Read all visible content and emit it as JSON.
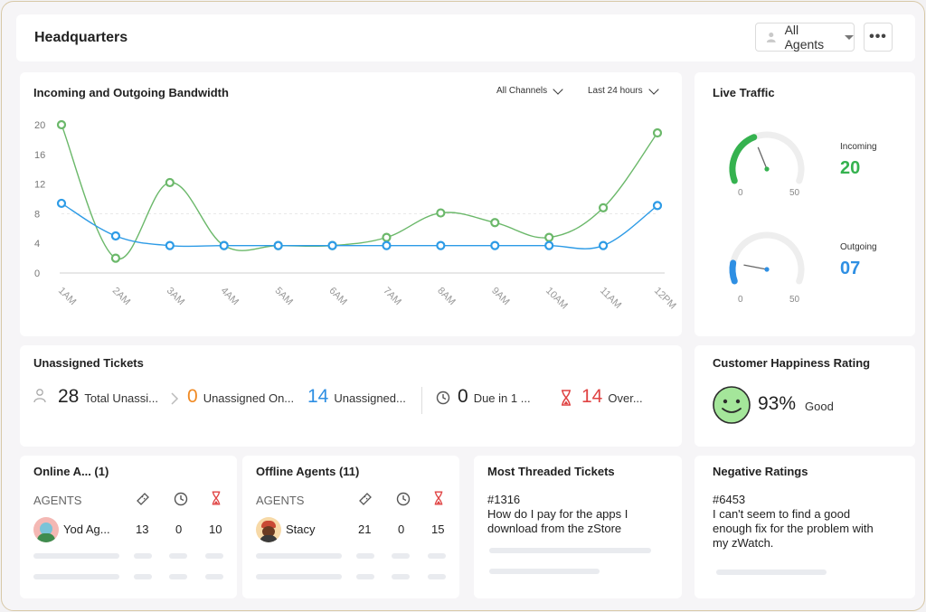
{
  "header": {
    "title": "Headquarters",
    "agents_filter": "All Agents",
    "more_label": "•••"
  },
  "bandwidth": {
    "title": "Incoming and Outgoing Bandwidth",
    "channels_filter": "All Channels",
    "time_filter": "Last 24 hours"
  },
  "chart_data": {
    "type": "line",
    "categories": [
      "1AM",
      "2AM",
      "3AM",
      "4AM",
      "5AM",
      "6AM",
      "7AM",
      "8AM",
      "9AM",
      "10AM",
      "11AM",
      "12PM"
    ],
    "y_ticks": [
      "20",
      "16",
      "12",
      "8",
      "4",
      "0"
    ],
    "ylim": [
      0,
      20
    ],
    "series": [
      {
        "color": "#6bb86a",
        "values": [
          20,
          2,
          12.2,
          3.7,
          3.7,
          3.7,
          4.8,
          8.1,
          6.8,
          4.8,
          8.8,
          18.9
        ]
      },
      {
        "color": "#2d9be6",
        "values": [
          9.4,
          5.0,
          3.7,
          3.7,
          3.7,
          3.7,
          3.7,
          3.7,
          3.7,
          3.7,
          3.7,
          9.1
        ]
      }
    ]
  },
  "live_traffic": {
    "title": "Live Traffic",
    "incoming": {
      "label": "Incoming",
      "value": "20",
      "min": "0",
      "max": "50",
      "level": 20,
      "color": "#35b24f"
    },
    "outgoing": {
      "label": "Outgoing",
      "value": "07",
      "min": "0",
      "max": "50",
      "level": 7,
      "color": "#2e8fe3"
    }
  },
  "tickets": {
    "title": "Unassigned Tickets",
    "total": {
      "count": "28",
      "label": "Total Unassi..."
    },
    "online": {
      "count": "0",
      "label": "Unassigned On...",
      "color": "#f08a24"
    },
    "offline": {
      "count": "14",
      "label": "Unassigned...",
      "color": "#2e8fe3"
    },
    "due": {
      "count": "0",
      "label": "Due in 1 ..."
    },
    "overdue": {
      "count": "14",
      "label": "Over...",
      "color": "#e04343"
    }
  },
  "happiness": {
    "title": "Customer Happiness Rating",
    "percent": "93%",
    "label": "Good"
  },
  "online_agents": {
    "title": "Online A... (1)",
    "col_agents": "AGENTS",
    "row": {
      "name": "Yod Ag...",
      "tickets": "13",
      "time": "0",
      "overdue": "10"
    }
  },
  "offline_agents": {
    "title": "Offline Agents (11)",
    "col_agents": "AGENTS",
    "row": {
      "name": "Stacy",
      "tickets": "21",
      "time": "0",
      "overdue": "15"
    }
  },
  "threaded": {
    "title": "Most Threaded Tickets",
    "ticket_id": "#1316",
    "line1": "How do I pay for the apps I",
    "line2": "download from the zStore"
  },
  "negative": {
    "title": "Negative Ratings",
    "ticket_id": "#6453",
    "line1": "I can't seem to find a good",
    "line2": "enough fix for the problem with",
    "line3": "my zWatch."
  }
}
